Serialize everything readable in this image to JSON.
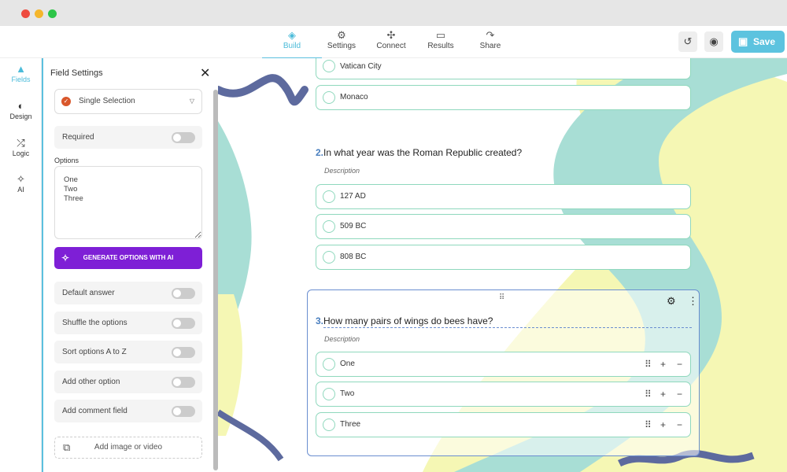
{
  "window": {
    "controls": [
      "close",
      "minimize",
      "maximize"
    ]
  },
  "topnav": {
    "tabs": [
      {
        "label": "Build",
        "icon": "layers-icon",
        "active": true
      },
      {
        "label": "Settings",
        "icon": "gear-icon"
      },
      {
        "label": "Connect",
        "icon": "puzzle-icon"
      },
      {
        "label": "Results",
        "icon": "inbox-icon"
      },
      {
        "label": "Share",
        "icon": "share-icon"
      }
    ],
    "save_label": "Save"
  },
  "rail": {
    "items": [
      {
        "label": "Fields",
        "active": true
      },
      {
        "label": "Design"
      },
      {
        "label": "Logic"
      },
      {
        "label": "AI"
      }
    ]
  },
  "panel": {
    "title": "Field Settings",
    "field_type": "Single Selection",
    "required_label": "Required",
    "options_label": "Options",
    "options_text": "One\nTwo\nThree",
    "generate_label": "GENERATE OPTIONS WITH AI",
    "toggles": [
      {
        "label": "Default answer",
        "on": false
      },
      {
        "label": "Shuffle the options",
        "on": false
      },
      {
        "label": "Sort options A to Z",
        "on": false
      },
      {
        "label": "Add other option",
        "on": false
      },
      {
        "label": "Add comment field",
        "on": false
      }
    ],
    "add_media_label": "Add image or video"
  },
  "form": {
    "q1_options": [
      "Vatican City",
      "Monaco"
    ],
    "q2": {
      "number": "2.",
      "title": "In what year was the Roman Republic created?",
      "description": "Description",
      "options": [
        "127 AD",
        "509 BC",
        "808 BC"
      ]
    },
    "q3": {
      "number": "3.",
      "title": "How many pairs of wings do bees have?",
      "description": "Description",
      "options": [
        "One",
        "Two",
        "Three"
      ]
    }
  },
  "colors": {
    "accent": "#5cc0de",
    "ai_button": "#7e1fd6",
    "option_border": "#8fd8bd",
    "question_number": "#4a7fbf"
  }
}
